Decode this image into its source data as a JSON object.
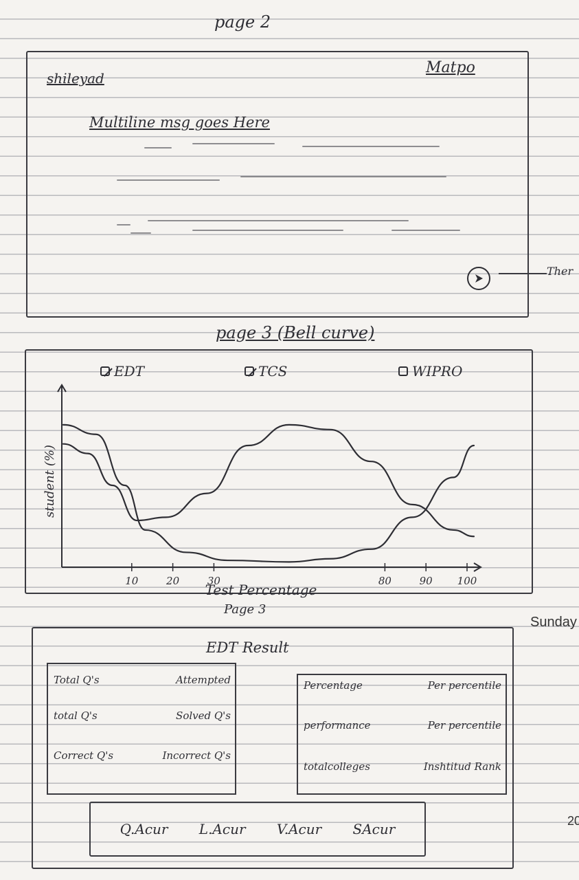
{
  "page2": {
    "title": "page 2",
    "author": "shileyad",
    "company": "Matpo",
    "message_placeholder": "Multiline msg goes Here",
    "side_annotation": "Ther"
  },
  "page3": {
    "title": "page 3 (Bell curve)",
    "legend": [
      {
        "label": "EDT",
        "checked": true
      },
      {
        "label": "TCS",
        "checked": true
      },
      {
        "label": "WIPRO",
        "checked": false
      }
    ]
  },
  "chart_data": {
    "type": "line",
    "title": "page 3 (Bell curve)",
    "xlabel": "Test Percentage",
    "ylabel": "student (%)",
    "x_ticks": [
      "10",
      "20",
      "30",
      "80",
      "90",
      "100"
    ],
    "xlim": [
      0,
      100
    ],
    "ylim": [
      0,
      100
    ],
    "series": [
      {
        "name": "EDT",
        "x": [
          0,
          8,
          15,
          20,
          30,
          40,
          55,
          65,
          75,
          85,
          95,
          100
        ],
        "y": [
          88,
          82,
          50,
          22,
          8,
          3,
          2,
          4,
          10,
          30,
          55,
          75
        ]
      },
      {
        "name": "TCS",
        "x": [
          0,
          6,
          12,
          18,
          25,
          35,
          45,
          55,
          65,
          75,
          85,
          95,
          100
        ],
        "y": [
          76,
          70,
          50,
          28,
          30,
          45,
          75,
          88,
          85,
          65,
          38,
          22,
          18
        ]
      }
    ]
  },
  "page3_footer": {
    "label": "Page 3",
    "side_text": "Sunday",
    "side_number": "20"
  },
  "result": {
    "title": "EDT Result",
    "left_rows": [
      {
        "a": "Total Q's",
        "b": "Attempted"
      },
      {
        "a": "total Q's",
        "b": "Solved Q's"
      },
      {
        "a": "Correct Q's",
        "b": "Incorrect Q's"
      }
    ],
    "right_rows": [
      {
        "a": "Percentage",
        "b": "Per percentile"
      },
      {
        "a": "performance",
        "b": "Per percentile"
      },
      {
        "a": "totalcolleges",
        "b": "Inshtitud Rank"
      }
    ],
    "actions": [
      "Q.Acur",
      "L.Acur",
      "V.Acur",
      "SAcur"
    ]
  }
}
